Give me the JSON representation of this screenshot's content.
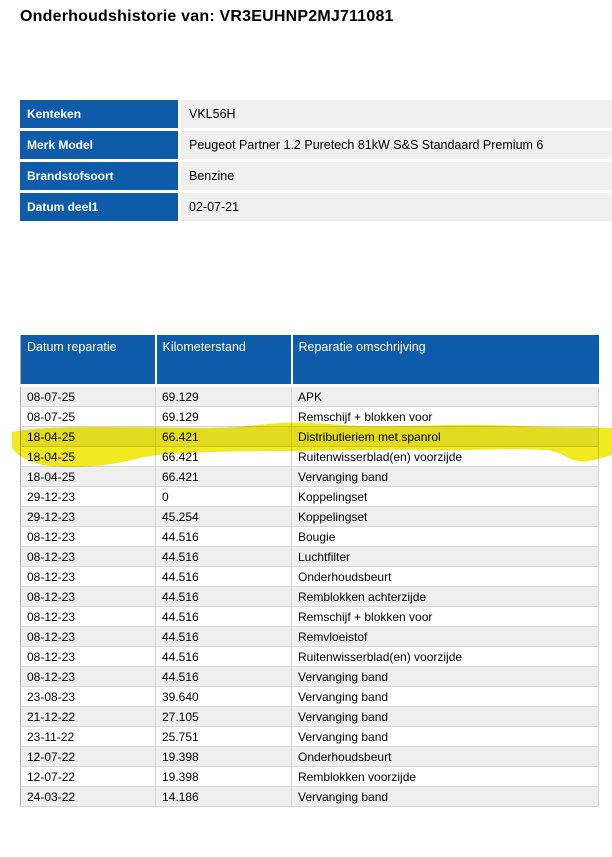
{
  "title": "Onderhoudshistorie van: VR3EUHNP2MJ711081",
  "info_table": {
    "rows": [
      {
        "label": "Kenteken",
        "value": "VKL56H"
      },
      {
        "label": "Merk Model",
        "value": "Peugeot Partner 1.2 Puretech 81kW S&S Standaard Premium 6"
      },
      {
        "label": "Brandstofsoort",
        "value": "Benzine"
      },
      {
        "label": "Datum deel1",
        "value": "02-07-21"
      }
    ]
  },
  "history_table": {
    "columns": [
      "Datum reparatie",
      "Kilometerstand",
      "Reparatie omschrijving"
    ],
    "rows": [
      [
        "08-07-25",
        "69.129",
        "APK"
      ],
      [
        "08-07-25",
        "69.129",
        "Remschijf + blokken voor"
      ],
      [
        "18-04-25",
        "66.421",
        "Distributieriem met spanrol"
      ],
      [
        "18-04-25",
        "66.421",
        "Ruitenwisserblad(en) voorzijde"
      ],
      [
        "18-04-25",
        "66.421",
        "Vervanging band"
      ],
      [
        "29-12-23",
        "0",
        "Koppelingset"
      ],
      [
        "29-12-23",
        "45.254",
        "Koppelingset"
      ],
      [
        "08-12-23",
        "44.516",
        "Bougie"
      ],
      [
        "08-12-23",
        "44.516",
        "Luchtfilter"
      ],
      [
        "08-12-23",
        "44.516",
        "Onderhoudsbeurt"
      ],
      [
        "08-12-23",
        "44.516",
        "Remblokken achterzijde"
      ],
      [
        "08-12-23",
        "44.516",
        "Remschijf + blokken voor"
      ],
      [
        "08-12-23",
        "44.516",
        "Remvloeistof"
      ],
      [
        "08-12-23",
        "44.516",
        "Ruitenwisserblad(en) voorzijde"
      ],
      [
        "08-12-23",
        "44.516",
        "Vervanging band"
      ],
      [
        "23-08-23",
        "39.640",
        "Vervanging band"
      ],
      [
        "21-12-22",
        "27.105",
        "Vervanging band"
      ],
      [
        "23-11-22",
        "25.751",
        "Vervanging band"
      ],
      [
        "12-07-22",
        "19.398",
        "Onderhoudsbeurt"
      ],
      [
        "12-07-22",
        "19.398",
        "Remblokken voorzijde"
      ],
      [
        "24-03-22",
        "14.186",
        "Vervanging band"
      ]
    ],
    "highlighted_row_index": 2,
    "highlighted_row_text": "Distributieriem met spanrol"
  },
  "colors": {
    "header_blue": "#0e5ba9",
    "row_alt_gray": "#efefef",
    "grid_line": "#d4d4d4",
    "highlight_yellow": "#f1e90e"
  }
}
